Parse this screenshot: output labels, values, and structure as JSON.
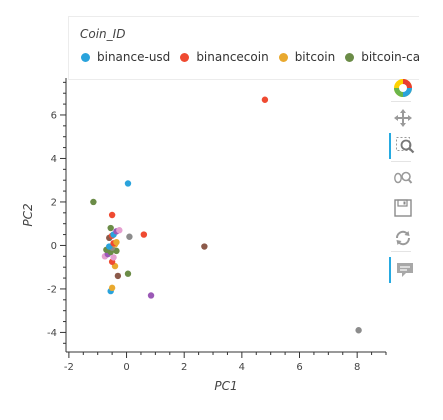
{
  "legend": {
    "title": "Coin_ID",
    "items": [
      {
        "label": "binance-usd",
        "color": "#2aa3dc"
      },
      {
        "label": "binancecoin",
        "color": "#ef4a31"
      },
      {
        "label": "bitcoin",
        "color": "#e9a92f"
      },
      {
        "label": "bitcoin-ca",
        "color": "#6b8c47"
      }
    ]
  },
  "toolbar": {
    "tools": [
      {
        "name": "bokeh-logo-icon",
        "active": false,
        "interactable": false
      },
      {
        "name": "pan-tool-icon",
        "active": false,
        "interactable": true
      },
      {
        "name": "box-zoom-tool-icon",
        "active": true,
        "interactable": true
      },
      {
        "name": "wheel-zoom-tool-icon",
        "active": false,
        "interactable": true
      },
      {
        "name": "save-tool-icon",
        "active": false,
        "interactable": true
      },
      {
        "name": "reset-tool-icon",
        "active": false,
        "interactable": true
      },
      {
        "name": "hover-tool-icon",
        "active": true,
        "interactable": true
      }
    ]
  },
  "chart_data": {
    "type": "scatter",
    "title": "",
    "xlabel": "PC1",
    "ylabel": "PC2",
    "xlim": [
      -2.1,
      9.0
    ],
    "ylim": [
      -4.9,
      7.7
    ],
    "xticks": [
      -2,
      0,
      2,
      4,
      6,
      8
    ],
    "yticks": [
      -4,
      -2,
      0,
      2,
      4,
      6
    ],
    "grid": false,
    "legend_position": "top",
    "points": [
      {
        "x": 4.8,
        "y": 6.7,
        "color": "#ef4a31"
      },
      {
        "x": 8.05,
        "y": -3.9,
        "color": "#8c8c8c"
      },
      {
        "x": 2.7,
        "y": -0.05,
        "color": "#8c5a4a"
      },
      {
        "x": 0.05,
        "y": 2.85,
        "color": "#2aa3dc"
      },
      {
        "x": -1.15,
        "y": 2.0,
        "color": "#6b8c47"
      },
      {
        "x": 0.6,
        "y": 0.5,
        "color": "#ef4a31"
      },
      {
        "x": 0.85,
        "y": -2.3,
        "color": "#9b59b6"
      },
      {
        "x": -0.55,
        "y": -2.1,
        "color": "#2aa3dc"
      },
      {
        "x": -0.5,
        "y": -1.95,
        "color": "#e9a92f"
      },
      {
        "x": 0.05,
        "y": -1.3,
        "color": "#6b8c47"
      },
      {
        "x": -0.3,
        "y": -1.4,
        "color": "#8c5a4a"
      },
      {
        "x": -0.4,
        "y": -0.95,
        "color": "#e9a92f"
      },
      {
        "x": -0.5,
        "y": -0.75,
        "color": "#ef4a31"
      },
      {
        "x": -0.45,
        "y": -0.55,
        "color": "#e4a0d0"
      },
      {
        "x": -0.75,
        "y": -0.5,
        "color": "#e4a0d0"
      },
      {
        "x": -0.65,
        "y": -0.4,
        "color": "#9b59b6"
      },
      {
        "x": -0.55,
        "y": -0.3,
        "color": "#6b8c47"
      },
      {
        "x": -0.7,
        "y": -0.2,
        "color": "#6b8c47"
      },
      {
        "x": -0.35,
        "y": -0.25,
        "color": "#6b8c47"
      },
      {
        "x": -0.5,
        "y": -0.1,
        "color": "#8c8c8c"
      },
      {
        "x": -0.6,
        "y": -0.05,
        "color": "#2aa3dc"
      },
      {
        "x": -0.4,
        "y": 0.05,
        "color": "#e9a92f"
      },
      {
        "x": -0.45,
        "y": 0.1,
        "color": "#ef4a31"
      },
      {
        "x": -0.6,
        "y": 0.35,
        "color": "#8c5a4a"
      },
      {
        "x": -0.35,
        "y": 0.15,
        "color": "#e9a92f"
      },
      {
        "x": -0.5,
        "y": 0.45,
        "color": "#ef4a31"
      },
      {
        "x": -0.45,
        "y": 0.5,
        "color": "#2aa3dc"
      },
      {
        "x": -0.35,
        "y": 0.65,
        "color": "#9b59b6"
      },
      {
        "x": -0.25,
        "y": 0.7,
        "color": "#e4a0d0"
      },
      {
        "x": 0.1,
        "y": 0.4,
        "color": "#8c8c8c"
      },
      {
        "x": -0.55,
        "y": 0.8,
        "color": "#6b8c47"
      },
      {
        "x": -0.5,
        "y": 1.4,
        "color": "#ef4a31"
      }
    ]
  }
}
